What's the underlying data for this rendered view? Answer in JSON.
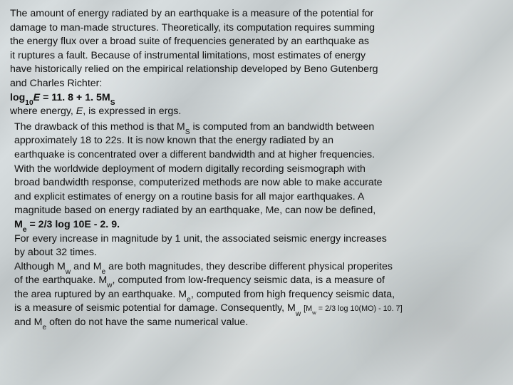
{
  "text_color": "#111111",
  "font_family": "Arial",
  "base_font_size_pt": 11,
  "small_bracket_font_size_pt": 8,
  "background": {
    "description": "light-gray mottled marble/granite texture",
    "base_colors": [
      "#cbd1d3",
      "#d6dcde",
      "#c7cdcf",
      "#d7dddf",
      "#cfd5d7",
      "#c2c8ca",
      "#d5dbdc",
      "#c8cecf",
      "#d2d7d8",
      "#c1c7c8",
      "#d6dada",
      "#cad0d1",
      "#c3c9ca",
      "#d4d9da",
      "#c9cfd0",
      "#d1d6d7"
    ]
  },
  "p1": {
    "l1": "The amount of energy radiated by an earthquake is a measure of the potential for",
    "l2": "damage to man-made structures. Theoretically, its computation requires summing",
    "l3": "the energy flux over a broad suite of frequencies generated by an earthquake as",
    "l4": "it ruptures a fault. Because of instrumental limitations, most estimates of energy",
    "l5": "have historically relied on the empirical relationship developed by Beno Gutenberg",
    "l6": "and Charles Richter:",
    "eq_a": "log",
    "eq_sub1": "10",
    "eq_b": "E",
    "eq_c": " = 11. 8 + 1. 5M",
    "eq_sub2": "S",
    "l8a": "where energy, ",
    "l8b": "E",
    "l8c": ", is expressed in ergs."
  },
  "p2": {
    "l1a": "The drawback of this method is that M",
    "l1sub": "S",
    "l1b": " is computed from an bandwidth between",
    "l2": "approximately 18 to 22s. It is now known that the energy radiated by an",
    "l3": "earthquake is concentrated over a different bandwidth and at higher frequencies.",
    "l4": "With the worldwide deployment of modern digitally recording seismograph with",
    "l5": "broad bandwidth response, computerized methods are now able to make accurate",
    "l6": "and explicit estimates of energy on a routine basis for all major earthquakes. A",
    "l7": "magnitude based on energy radiated by an earthquake, Me, can now be defined,",
    "l8a": "M",
    "l8sub": "e",
    "l8b": " = 2/3 log 10E - 2. 9.",
    "l9": "For every increase in magnitude by 1 unit, the associated seismic energy increases",
    "l10": "by about 32 times.",
    "l11a": "Although M",
    "l11s1": "w",
    "l11b": " and M",
    "l11s2": "e",
    "l11c": " are both magnitudes, they describe different physical properites",
    "l12a": "of the earthquake.  M",
    "l12s": "w",
    "l12b": ", computed from low-frequency seismic data, is a measure of",
    "l13a": "the area ruptured by an earthquake.  M",
    "l13s": "e",
    "l13b": ", computed from high frequency seismic data,",
    "l14a": "is a measure of seismic potential for damage. Consequently, M",
    "l14s": "w",
    "l14br_a": " [M",
    "l14br_s": "w",
    "l14br_b": " = 2/3 log 10(MO) - 10. 7]",
    "l15a": "and M",
    "l15s": "e",
    "l15b": " often do not have the same numerical value."
  }
}
